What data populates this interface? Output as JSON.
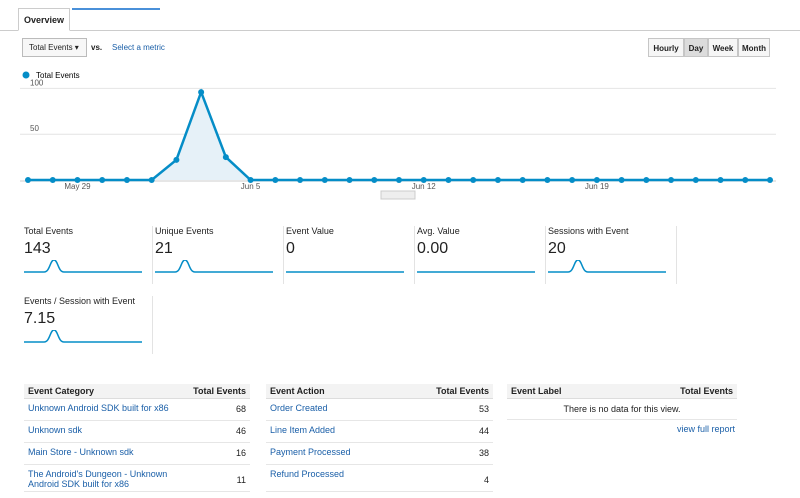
{
  "tabs": {
    "active": "Overview"
  },
  "toolbar": {
    "metric": "Total Events",
    "vs": "vs.",
    "select_metric": "Select a metric",
    "ranges": [
      "Hourly",
      "Day",
      "Week",
      "Month"
    ],
    "selected_range": "Day"
  },
  "chart_data": {
    "type": "line",
    "categories": [
      null,
      null,
      "May 29",
      null,
      null,
      null,
      null,
      null,
      null,
      "Jun 5",
      null,
      null,
      null,
      null,
      null,
      null,
      "Jun 12",
      null,
      null,
      null,
      null,
      null,
      null,
      "Jun 19",
      null,
      null,
      null,
      null,
      null,
      null,
      null
    ],
    "series": [
      {
        "name": "Total Events",
        "color": "#058dc7",
        "values": [
          0,
          0,
          0,
          0,
          0,
          0,
          22,
          96,
          25,
          0,
          0,
          0,
          0,
          0,
          0,
          0,
          0,
          0,
          0,
          0,
          0,
          0,
          0,
          0,
          0,
          0,
          0,
          0,
          0,
          0,
          0
        ]
      }
    ],
    "ylim": [
      0,
      107
    ],
    "yticks": [
      50,
      100
    ],
    "grid": true
  },
  "metrics": [
    {
      "label": "Total Events",
      "value": 143
    },
    {
      "label": "Unique Events",
      "value": 21
    },
    {
      "label": "Event Value",
      "value": 0
    },
    {
      "label": "Avg. Value",
      "value": "0.00"
    },
    {
      "label": "Sessions with Event",
      "value": 20
    },
    {
      "label": "Events / Session with Event",
      "value": 7.15
    }
  ],
  "tables": [
    {
      "headers": [
        "Event Category",
        "Total Events"
      ],
      "rows": [
        [
          "Unknown Android SDK built for x86",
          68
        ],
        [
          "Unknown sdk",
          46
        ],
        [
          "Main Store - Unknown sdk",
          16
        ],
        [
          "The Android's Dungeon - Unknown Android SDK built for x86",
          11
        ]
      ]
    },
    {
      "headers": [
        "Event Action",
        "Total Events"
      ],
      "rows": [
        [
          "Order Created",
          53
        ],
        [
          "Line Item Added",
          44
        ],
        [
          "Payment Processed",
          38
        ],
        [
          "Refund Processed",
          4
        ]
      ]
    }
  ],
  "empty_table": {
    "headers": [
      "Event Label",
      "Total Events"
    ],
    "message": "There is no data for this view.",
    "link": "view full report"
  }
}
